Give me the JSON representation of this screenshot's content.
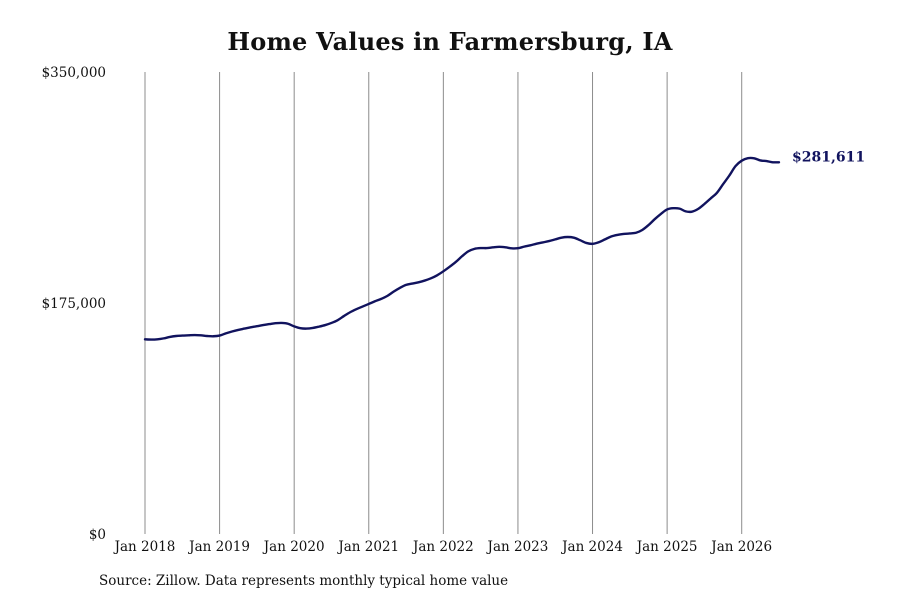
{
  "colors": {
    "line": "#11135e",
    "gridline": "#8c8c8c",
    "text": "#111111"
  },
  "footer": {
    "source": "Source: Zillow. Data represents monthly typical home value"
  },
  "chart_data": {
    "type": "line",
    "title": "Home Values in Farmersburg, IA",
    "xlabel": "",
    "ylabel": "",
    "y_ticks": [
      {
        "value": 0,
        "label": "$0"
      },
      {
        "value": 175000,
        "label": "$175,000"
      },
      {
        "value": 350000,
        "label": "$350,000"
      }
    ],
    "ylim": [
      0,
      350000
    ],
    "xlim": [
      "2018-01",
      "2026-07"
    ],
    "x_ticks": [
      {
        "x": "2018-01",
        "label": "Jan 2018"
      },
      {
        "x": "2019-01",
        "label": "Jan 2019"
      },
      {
        "x": "2020-01",
        "label": "Jan 2020"
      },
      {
        "x": "2021-01",
        "label": "Jan 2021"
      },
      {
        "x": "2022-01",
        "label": "Jan 2022"
      },
      {
        "x": "2023-01",
        "label": "Jan 2023"
      },
      {
        "x": "2024-01",
        "label": "Jan 2024"
      },
      {
        "x": "2025-01",
        "label": "Jan 2025"
      },
      {
        "x": "2026-01",
        "label": "Jan 2026"
      }
    ],
    "grid": {
      "vertical": true,
      "horizontal": false
    },
    "legend": "none",
    "end_label": "$281,611",
    "series": [
      {
        "x": [
          "2018-01",
          "2018-02",
          "2018-03",
          "2018-04",
          "2018-05",
          "2018-06",
          "2018-07",
          "2018-08",
          "2018-09",
          "2018-10",
          "2018-11",
          "2018-12",
          "2019-01",
          "2019-02",
          "2019-03",
          "2019-04",
          "2019-05",
          "2019-06",
          "2019-07",
          "2019-08",
          "2019-09",
          "2019-10",
          "2019-11",
          "2019-12",
          "2020-01",
          "2020-02",
          "2020-03",
          "2020-04",
          "2020-05",
          "2020-06",
          "2020-07",
          "2020-08",
          "2020-09",
          "2020-10",
          "2020-11",
          "2020-12",
          "2021-01",
          "2021-02",
          "2021-03",
          "2021-04",
          "2021-05",
          "2021-06",
          "2021-07",
          "2021-08",
          "2021-09",
          "2021-10",
          "2021-11",
          "2021-12",
          "2022-01",
          "2022-02",
          "2022-03",
          "2022-04",
          "2022-05",
          "2022-06",
          "2022-07",
          "2022-08",
          "2022-09",
          "2022-10",
          "2022-11",
          "2022-12",
          "2023-01",
          "2023-02",
          "2023-03",
          "2023-04",
          "2023-05",
          "2023-06",
          "2023-07",
          "2023-08",
          "2023-09",
          "2023-10",
          "2023-11",
          "2023-12",
          "2024-01",
          "2024-02",
          "2024-03",
          "2024-04",
          "2024-05",
          "2024-06",
          "2024-07",
          "2024-08",
          "2024-09",
          "2024-10",
          "2024-11",
          "2024-12",
          "2025-01",
          "2025-02",
          "2025-03",
          "2025-04",
          "2025-05",
          "2025-06",
          "2025-07",
          "2025-08",
          "2025-09",
          "2025-10",
          "2025-11",
          "2025-12",
          "2026-01",
          "2026-02",
          "2026-03",
          "2026-04",
          "2026-05",
          "2026-06",
          "2026-07"
        ],
        "values": [
          147500,
          147300,
          147500,
          148200,
          149300,
          150000,
          150300,
          150500,
          150700,
          150500,
          150000,
          149800,
          150300,
          152000,
          153400,
          154600,
          155600,
          156600,
          157400,
          158300,
          159000,
          159700,
          159900,
          159300,
          157300,
          155900,
          155600,
          156100,
          157100,
          158300,
          159900,
          162000,
          165100,
          168000,
          170300,
          172300,
          174300,
          176300,
          178100,
          180400,
          183600,
          186400,
          188700,
          189700,
          190700,
          192000,
          193700,
          196000,
          199000,
          202400,
          206100,
          210400,
          214100,
          216000,
          216600,
          216600,
          217200,
          217600,
          217200,
          216400,
          216500,
          217700,
          218700,
          219900,
          220900,
          221900,
          223200,
          224500,
          225000,
          224500,
          222600,
          220500,
          219800,
          221000,
          223200,
          225400,
          226600,
          227300,
          227700,
          228200,
          230300,
          234000,
          238500,
          242500,
          245900,
          246800,
          246500,
          244400,
          244200,
          246300,
          250000,
          254200,
          258400,
          265000,
          271500,
          278700,
          282800,
          284700,
          284600,
          283000,
          282500,
          281611,
          281611
        ]
      }
    ]
  }
}
